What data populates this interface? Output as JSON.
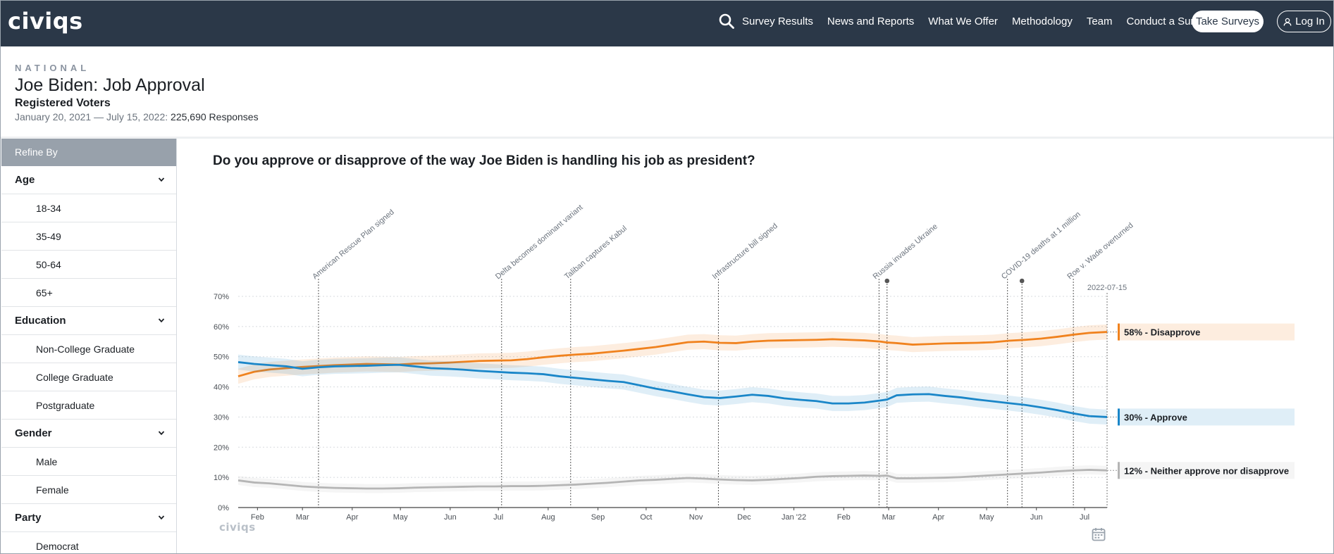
{
  "nav": {
    "logo": "civiqs",
    "links": [
      "Survey Results",
      "News and Reports",
      "What We Offer",
      "Methodology",
      "Team",
      "Conduct a Survey"
    ],
    "take_surveys": "Take Surveys",
    "login": "Log In",
    "icons": {
      "search": "search-icon",
      "user": "user-icon"
    }
  },
  "header": {
    "kicker": "NATIONAL",
    "title": "Joe Biden: Job Approval",
    "subtitle": "Registered Voters",
    "date_range": "January 20, 2021 — July 15, 2022:",
    "responses": "225,690 Responses"
  },
  "sidebar": {
    "refine_label": "Refine By",
    "groups": [
      {
        "label": "Age",
        "options": [
          "18-34",
          "35-49",
          "50-64",
          "65+"
        ]
      },
      {
        "label": "Education",
        "options": [
          "Non-College Graduate",
          "College Graduate",
          "Postgraduate"
        ]
      },
      {
        "label": "Gender",
        "options": [
          "Male",
          "Female"
        ]
      },
      {
        "label": "Party",
        "options": [
          "Democrat"
        ]
      }
    ]
  },
  "colors": {
    "nav_bg": "#2b3848",
    "disapprove": "#f0821e",
    "approve": "#1a86c8",
    "neither": "#b5b5b5"
  },
  "chart_data": {
    "type": "line",
    "title": "Do you approve or disapprove of the way Joe Biden is handling his job as president?",
    "logo": "civiqs",
    "xlabel": "",
    "ylabel": "",
    "ylim": [
      0,
      70
    ],
    "y_ticks": [
      "0%",
      "10%",
      "20%",
      "30%",
      "40%",
      "50%",
      "60%",
      "70%"
    ],
    "x_ticks": [
      "Feb",
      "Mar",
      "Apr",
      "May",
      "Jun",
      "Jul",
      "Aug",
      "Sep",
      "Oct",
      "Nov",
      "Dec",
      "Jan '22",
      "Feb",
      "Mar",
      "Apr",
      "May",
      "Jun",
      "Jul"
    ],
    "x_tick_days": [
      12,
      40,
      71,
      101,
      132,
      162,
      193,
      224,
      254,
      285,
      315,
      346,
      377,
      405,
      436,
      466,
      497,
      527
    ],
    "x_range_days": [
      0,
      541
    ],
    "end_date_label": "2022-07-15",
    "grid": true,
    "x_days": [
      0,
      10,
      20,
      30,
      40,
      50,
      60,
      70,
      80,
      90,
      100,
      110,
      120,
      130,
      140,
      150,
      160,
      170,
      180,
      190,
      200,
      210,
      220,
      230,
      240,
      250,
      260,
      270,
      280,
      290,
      300,
      310,
      320,
      330,
      340,
      350,
      360,
      370,
      380,
      390,
      400,
      404,
      410,
      420,
      430,
      440,
      450,
      460,
      470,
      480,
      490,
      500,
      510,
      520,
      530,
      541
    ],
    "series": [
      {
        "name": "58% - Disapprove",
        "color": "#f0821e",
        "band": 2.5,
        "values": [
          43.5,
          45,
          45.8,
          46.2,
          46.6,
          46.9,
          47.2,
          47.4,
          47.6,
          47.5,
          47.4,
          47.7,
          47.8,
          48.0,
          48.3,
          48.6,
          48.7,
          48.8,
          49.2,
          49.8,
          50.3,
          50.7,
          51.0,
          51.5,
          52.0,
          52.6,
          53.2,
          54.0,
          54.8,
          55.0,
          54.6,
          54.5,
          55.0,
          55.3,
          55.4,
          55.5,
          55.6,
          55.8,
          55.6,
          55.4,
          55.0,
          54.7,
          54.5,
          54.0,
          54.2,
          54.4,
          54.5,
          54.6,
          54.8,
          55.3,
          55.6,
          56.0,
          56.6,
          57.3,
          57.9,
          58.2
        ]
      },
      {
        "name": "30% - Approve",
        "color": "#1a86c8",
        "band": 2.5,
        "values": [
          48.2,
          47.6,
          47.2,
          46.8,
          46.0,
          46.5,
          46.8,
          46.9,
          47.0,
          47.2,
          47.3,
          46.8,
          46.2,
          46.0,
          45.7,
          45.3,
          45.0,
          44.7,
          44.5,
          44.2,
          43.5,
          43.0,
          42.5,
          42.0,
          41.6,
          40.5,
          39.4,
          38.5,
          37.5,
          36.6,
          36.3,
          36.8,
          37.4,
          37.0,
          36.2,
          35.7,
          35.3,
          34.5,
          34.5,
          34.8,
          35.5,
          35.8,
          37.2,
          37.5,
          37.6,
          37.0,
          36.5,
          35.8,
          35.2,
          34.6,
          34.0,
          33.2,
          32.3,
          31.2,
          30.3,
          30.0
        ]
      },
      {
        "name": "12% - Neither approve nor disapprove",
        "color": "#b5b5b5",
        "band": 1.5,
        "values": [
          9.0,
          8.3,
          8.0,
          7.5,
          7.0,
          6.7,
          6.5,
          6.4,
          6.3,
          6.3,
          6.4,
          6.6,
          6.7,
          6.8,
          6.9,
          7.0,
          7.0,
          7.1,
          7.1,
          7.2,
          7.4,
          7.6,
          7.9,
          8.2,
          8.6,
          9.0,
          9.2,
          9.5,
          9.8,
          9.6,
          9.3,
          9.1,
          9.0,
          9.2,
          9.5,
          9.8,
          10.2,
          10.4,
          10.5,
          10.6,
          10.5,
          10.6,
          9.7,
          9.7,
          9.8,
          9.9,
          10.1,
          10.4,
          10.7,
          11.0,
          11.3,
          11.6,
          12.0,
          12.3,
          12.5,
          12.3
        ]
      }
    ],
    "events": [
      {
        "label": "American Rescue Plan signed",
        "day": 50
      },
      {
        "label": "Delta becomes dominant variant",
        "day": 164
      },
      {
        "label": "Taliban captures Kabul",
        "day": 207
      },
      {
        "label": "Infrastructure bill signed",
        "day": 299
      },
      {
        "label": "Russia invades Ukraine",
        "day": 399
      },
      {
        "label": "",
        "day": 404,
        "marker": true
      },
      {
        "label": "COVID-19 deaths at 1 million",
        "day": 479
      },
      {
        "label": "",
        "day": 488,
        "marker": true
      },
      {
        "label": "Roe v. Wade overturned",
        "day": 520
      }
    ]
  }
}
